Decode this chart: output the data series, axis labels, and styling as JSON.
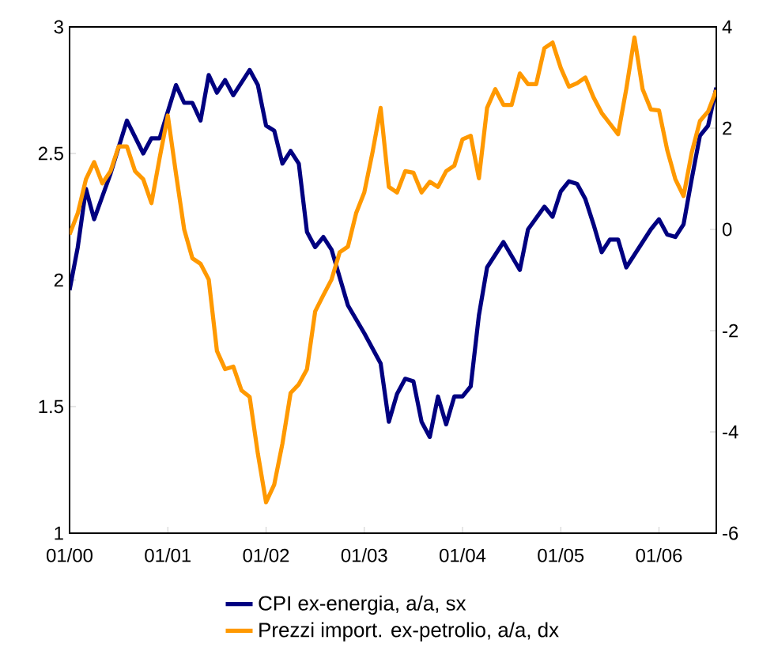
{
  "chart_data": {
    "type": "line",
    "xlim": [
      "2000-01",
      "2006-08"
    ],
    "xticks": [
      {
        "value": "2000-01",
        "label": "01/00"
      },
      {
        "value": "2001-01",
        "label": "01/01"
      },
      {
        "value": "2002-01",
        "label": "01/02"
      },
      {
        "value": "2003-01",
        "label": "01/03"
      },
      {
        "value": "2004-01",
        "label": "01/04"
      },
      {
        "value": "2005-01",
        "label": "01/05"
      },
      {
        "value": "2006-01",
        "label": "01/06"
      }
    ],
    "ylim": [
      1,
      3
    ],
    "yticks": [
      1,
      1.5,
      2,
      2.5,
      3
    ],
    "y2lim": [
      -6,
      4
    ],
    "y2ticks": [
      -6,
      -4,
      -2,
      0,
      2,
      4
    ],
    "legend": "bottom",
    "marker": "none",
    "line_style": "solid",
    "grid": false,
    "series": [
      {
        "name": "CPI ex-energia, a/a, sx",
        "color": "#000080",
        "x": [
          "2000-01",
          "2000-02",
          "2000-03",
          "2000-04",
          "2000-06",
          "2000-08",
          "2000-10",
          "2000-11",
          "2000-12",
          "2001-02",
          "2001-03",
          "2001-04",
          "2001-05",
          "2001-06",
          "2001-07",
          "2001-08",
          "2001-09",
          "2001-11",
          "2001-12",
          "2002-01",
          "2002-02",
          "2002-03",
          "2002-04",
          "2002-05",
          "2002-06",
          "2002-07",
          "2002-08",
          "2002-09",
          "2002-11",
          "2003-01",
          "2003-03",
          "2003-04",
          "2003-05",
          "2003-06",
          "2003-07",
          "2003-08",
          "2003-09",
          "2003-10",
          "2003-11",
          "2003-12",
          "2004-01",
          "2004-02",
          "2004-03",
          "2004-04",
          "2004-06",
          "2004-08",
          "2004-09",
          "2004-11",
          "2004-12",
          "2005-01",
          "2005-02",
          "2005-03",
          "2005-04",
          "2005-05",
          "2005-06",
          "2005-07",
          "2005-08",
          "2005-09",
          "2005-10",
          "2005-12",
          "2006-01",
          "2006-02",
          "2006-03",
          "2006-04",
          "2006-05",
          "2006-06",
          "2006-07",
          "2006-08"
        ],
        "values": [
          1.96,
          2.13,
          2.36,
          2.24,
          2.42,
          2.63,
          2.5,
          2.56,
          2.56,
          2.77,
          2.7,
          2.7,
          2.63,
          2.81,
          2.74,
          2.79,
          2.73,
          2.83,
          2.77,
          2.61,
          2.59,
          2.46,
          2.51,
          2.46,
          2.19,
          2.13,
          2.17,
          2.12,
          1.9,
          1.79,
          1.67,
          1.44,
          1.55,
          1.61,
          1.6,
          1.44,
          1.38,
          1.54,
          1.43,
          1.54,
          1.54,
          1.58,
          1.86,
          2.05,
          2.15,
          2.04,
          2.2,
          2.29,
          2.25,
          2.35,
          2.39,
          2.38,
          2.32,
          2.22,
          2.11,
          2.16,
          2.16,
          2.05,
          2.1,
          2.2,
          2.24,
          2.18,
          2.17,
          2.22,
          2.4,
          2.57,
          2.61,
          2.76
        ]
      },
      {
        "name": "Prezzi import. ex-petrolio, a/a, dx",
        "color": "#ff9900",
        "axis": "y2",
        "x": [
          "2000-01",
          "2000-02",
          "2000-03",
          "2000-04",
          "2000-05",
          "2000-06",
          "2000-07",
          "2000-08",
          "2000-09",
          "2000-10",
          "2000-11",
          "2000-12",
          "2001-01",
          "2001-02",
          "2001-03",
          "2001-04",
          "2001-05",
          "2001-06",
          "2001-07",
          "2001-08",
          "2001-09",
          "2001-10",
          "2001-11",
          "2001-12",
          "2002-01",
          "2002-02",
          "2002-03",
          "2002-04",
          "2002-05",
          "2002-06",
          "2002-07",
          "2002-08",
          "2002-09",
          "2002-10",
          "2002-11",
          "2002-12",
          "2003-01",
          "2003-02",
          "2003-03",
          "2003-04",
          "2003-05",
          "2003-06",
          "2003-07",
          "2003-08",
          "2003-09",
          "2003-10",
          "2003-11",
          "2003-12",
          "2004-01",
          "2004-02",
          "2004-03",
          "2004-04",
          "2004-05",
          "2004-06",
          "2004-07",
          "2004-08",
          "2004-09",
          "2004-10",
          "2004-11",
          "2004-12",
          "2005-01",
          "2005-02",
          "2005-03",
          "2005-04",
          "2005-05",
          "2005-06",
          "2005-07",
          "2005-08",
          "2005-09",
          "2005-10",
          "2005-11",
          "2005-12",
          "2006-01",
          "2006-02",
          "2006-03",
          "2006-04",
          "2006-05",
          "2006-06",
          "2006-07",
          "2006-08"
        ],
        "values": [
          -0.1,
          0.32,
          0.99,
          1.33,
          0.91,
          1.15,
          1.64,
          1.64,
          1.15,
          0.99,
          0.52,
          1.41,
          2.25,
          1.1,
          0.0,
          -0.57,
          -0.68,
          -0.99,
          -2.4,
          -2.76,
          -2.71,
          -3.18,
          -3.31,
          -4.43,
          -5.39,
          -5.04,
          -4.23,
          -3.23,
          -3.06,
          -2.76,
          -1.62,
          -1.3,
          -0.99,
          -0.45,
          -0.34,
          0.32,
          0.73,
          1.52,
          2.4,
          0.84,
          0.73,
          1.15,
          1.12,
          0.73,
          0.94,
          0.84,
          1.15,
          1.26,
          1.78,
          1.85,
          1.01,
          2.4,
          2.77,
          2.46,
          2.46,
          3.08,
          2.87,
          2.87,
          3.58,
          3.69,
          3.19,
          2.82,
          2.89,
          3.0,
          2.61,
          2.3,
          2.09,
          1.88,
          2.77,
          3.79,
          2.77,
          2.37,
          2.35,
          1.57,
          0.99,
          0.66,
          1.52,
          2.14,
          2.33,
          2.75
        ]
      }
    ]
  }
}
